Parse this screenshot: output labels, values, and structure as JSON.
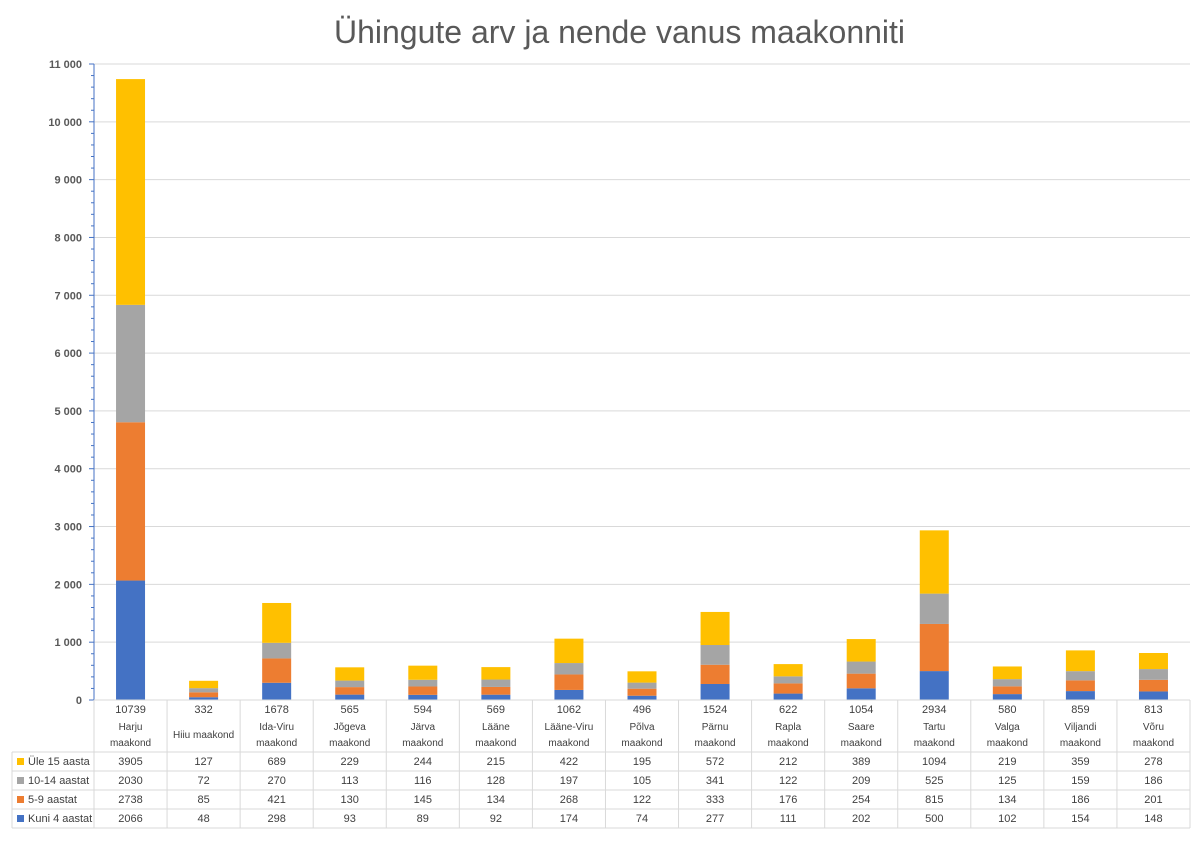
{
  "chart_data": {
    "type": "bar",
    "stacked": true,
    "title": "Ühingute arv ja nende vanus maakonniti",
    "ylim": [
      0,
      11000
    ],
    "yticks": [
      "0",
      "1 000",
      "2 000",
      "3 000",
      "4 000",
      "5 000",
      "6 000",
      "7 000",
      "8 000",
      "9 000",
      "10 000",
      "11 000"
    ],
    "grid": true,
    "legend": "table-left",
    "categories": [
      [
        "Harju",
        "maakond"
      ],
      [
        "Hiiu maakond",
        ""
      ],
      [
        "Ida-Viru",
        "maakond"
      ],
      [
        "Jõgeva",
        "maakond"
      ],
      [
        "Järva",
        "maakond"
      ],
      [
        "Lääne",
        "maakond"
      ],
      [
        "Lääne-Viru",
        "maakond"
      ],
      [
        "Põlva",
        "maakond"
      ],
      [
        "Pärnu",
        "maakond"
      ],
      [
        "Rapla",
        "maakond"
      ],
      [
        "Saare",
        "maakond"
      ],
      [
        "Tartu",
        "maakond"
      ],
      [
        "Valga",
        "maakond"
      ],
      [
        "Viljandi",
        "maakond"
      ],
      [
        "Võru",
        "maakond"
      ]
    ],
    "totals": [
      10739,
      332,
      1678,
      565,
      594,
      569,
      1062,
      496,
      1524,
      622,
      1054,
      2934,
      580,
      859,
      813
    ],
    "series": [
      {
        "name": "Kuni 4 aastat",
        "color": "#4472c4",
        "values": [
          2066,
          48,
          298,
          93,
          89,
          92,
          174,
          74,
          277,
          111,
          202,
          500,
          102,
          154,
          148
        ]
      },
      {
        "name": "5-9 aastat",
        "color": "#ed7d31",
        "values": [
          2738,
          85,
          421,
          130,
          145,
          134,
          268,
          122,
          333,
          176,
          254,
          815,
          134,
          186,
          201
        ]
      },
      {
        "name": "10-14 aastat",
        "color": "#a5a5a5",
        "values": [
          2030,
          72,
          270,
          113,
          116,
          128,
          197,
          105,
          341,
          122,
          209,
          525,
          125,
          159,
          186
        ]
      },
      {
        "name": "Üle 15 aasta",
        "color": "#ffc000",
        "values": [
          3905,
          127,
          689,
          229,
          244,
          215,
          422,
          195,
          572,
          212,
          389,
          1094,
          219,
          359,
          278
        ]
      }
    ]
  }
}
